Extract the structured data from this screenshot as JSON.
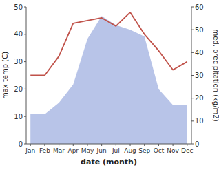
{
  "chart_data": {
    "type": "line",
    "xlabel": "date (month)",
    "ylabel": "max temp (C)",
    "y2label": "med. precipitation (kg/m2)",
    "categories": [
      "Jan",
      "Feb",
      "Mar",
      "Apr",
      "May",
      "Jun",
      "Jul",
      "Aug",
      "Sep",
      "Oct",
      "Nov",
      "Dec"
    ],
    "series": [
      {
        "type": "area",
        "color": "#b8c4e8",
        "axis": "y2",
        "values": [
          13,
          13,
          18,
          26,
          46,
          56,
          52,
          50,
          47,
          24,
          17,
          17
        ]
      },
      {
        "type": "line",
        "color": "#c0524a",
        "values": [
          25,
          25,
          32,
          44,
          45,
          46,
          43,
          48,
          40,
          34,
          27,
          30
        ]
      }
    ],
    "ylim": [
      0,
      50
    ],
    "yticks": [
      0,
      10,
      20,
      30,
      40,
      50
    ],
    "y2lim": [
      0,
      60
    ],
    "y2ticks": [
      0,
      10,
      20,
      30,
      40,
      50,
      60
    ],
    "grid": false
  }
}
